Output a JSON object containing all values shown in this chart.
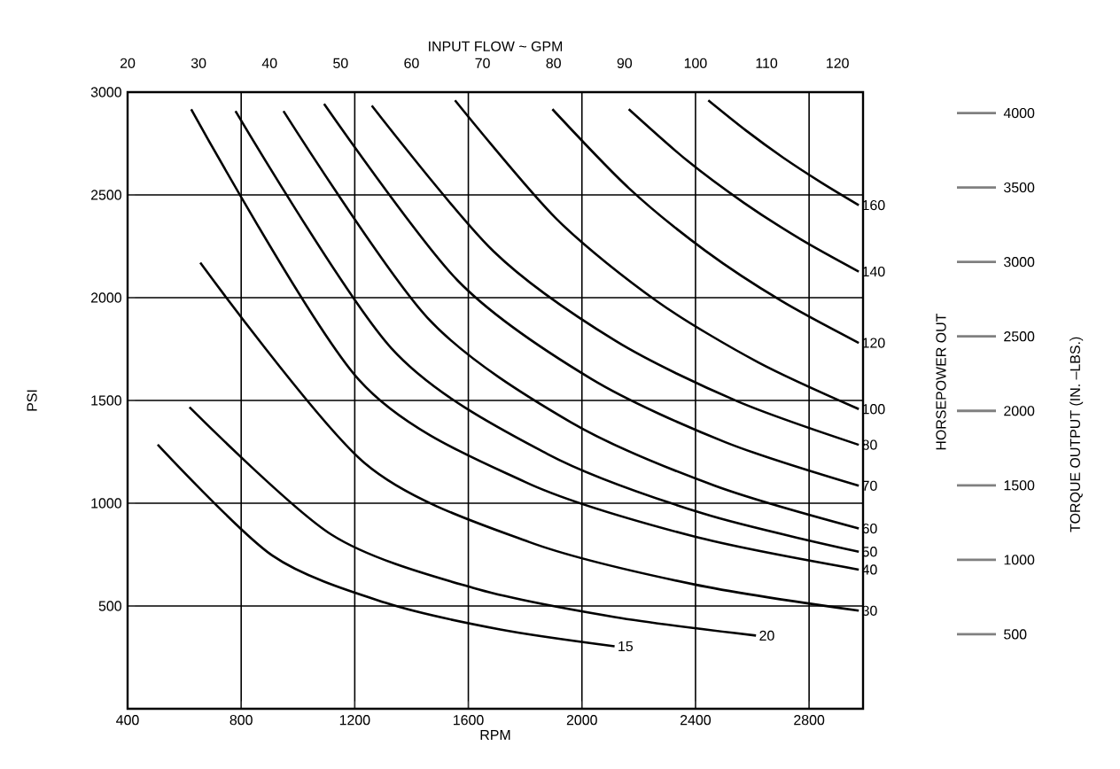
{
  "chart_data": {
    "type": "line",
    "xlabel": "RPM",
    "ylabel": "PSI",
    "x2label": "INPUT FLOW ~ GPM",
    "y2label": "TORQUE OUTPUT (IN. –LBS.)",
    "annotations": [
      "HORSEPOWER OUT"
    ],
    "xlim": [
      400,
      2990
    ],
    "xticks": [
      400,
      800,
      1200,
      1600,
      2000,
      2400,
      2800
    ],
    "ylim": [
      0,
      3000
    ],
    "yticks": [
      500,
      1000,
      1500,
      2000,
      2500,
      3000
    ],
    "x2lim": [
      20,
      123.6
    ],
    "x2ticks": [
      20,
      30,
      40,
      50,
      60,
      70,
      80,
      90,
      100,
      110,
      120
    ],
    "y2lim": [
      0,
      4140
    ],
    "y2ticks": [
      500,
      1000,
      1500,
      2000,
      2500,
      3000,
      3500,
      4000
    ],
    "grid": true,
    "series": [
      {
        "name": "15",
        "color": "#000000",
        "x": [
          506,
          909,
          1310,
          1712,
          2115
        ],
        "values": [
          1285,
          746,
          515,
          386,
          304
        ]
      },
      {
        "name": "20",
        "color": "#000000",
        "x": [
          618,
          1117,
          1616,
          2115,
          2613
        ],
        "values": [
          1467,
          848,
          588,
          446,
          356
        ]
      },
      {
        "name": "30",
        "color": "#000000",
        "x": [
          656,
          1235,
          1815,
          2395,
          2975
        ],
        "values": [
          2170,
          1195,
          811,
          605,
          477
        ]
      },
      {
        "name": "40",
        "color": "#000000",
        "x": [
          624,
          1213,
          1799,
          2389,
          2975
        ],
        "values": [
          2917,
          1603,
          1104,
          840,
          677
        ]
      },
      {
        "name": "50",
        "color": "#000000",
        "x": [
          780,
          1329,
          1878,
          2426,
          2975
        ],
        "values": [
          2908,
          1754,
          1240,
          950,
          764
        ]
      },
      {
        "name": "60",
        "color": "#000000",
        "x": [
          949,
          1455,
          1961,
          2468,
          2975
        ],
        "values": [
          2908,
          1904,
          1394,
          1085,
          877
        ]
      },
      {
        "name": "70",
        "color": "#000000",
        "x": [
          1092,
          1562,
          2034,
          2505,
          2975
        ],
        "values": [
          2943,
          2084,
          1604,
          1297,
          1085
        ]
      },
      {
        "name": "80",
        "color": "#000000",
        "x": [
          1260,
          1689,
          2118,
          2547,
          2975
        ],
        "values": [
          2934,
          2225,
          1790,
          1496,
          1284
        ]
      },
      {
        "name": "100",
        "color": "#000000",
        "x": [
          1553,
          1909,
          2264,
          2620,
          2975
        ],
        "values": [
          2960,
          2385,
          1983,
          1686,
          1458
        ]
      },
      {
        "name": "120",
        "color": "#000000",
        "x": [
          1896,
          2166,
          2435,
          2704,
          2975
        ],
        "values": [
          2917,
          2532,
          2228,
          1983,
          1780
        ]
      },
      {
        "name": "140",
        "color": "#000000",
        "x": [
          2165,
          2368,
          2570,
          2772,
          2975
        ],
        "values": [
          2917,
          2670,
          2462,
          2283,
          2127
        ]
      },
      {
        "name": "160",
        "color": "#000000",
        "x": [
          2445,
          2577,
          2709,
          2842,
          2975
        ],
        "values": [
          2960,
          2814,
          2681,
          2561,
          2450
        ]
      }
    ]
  }
}
